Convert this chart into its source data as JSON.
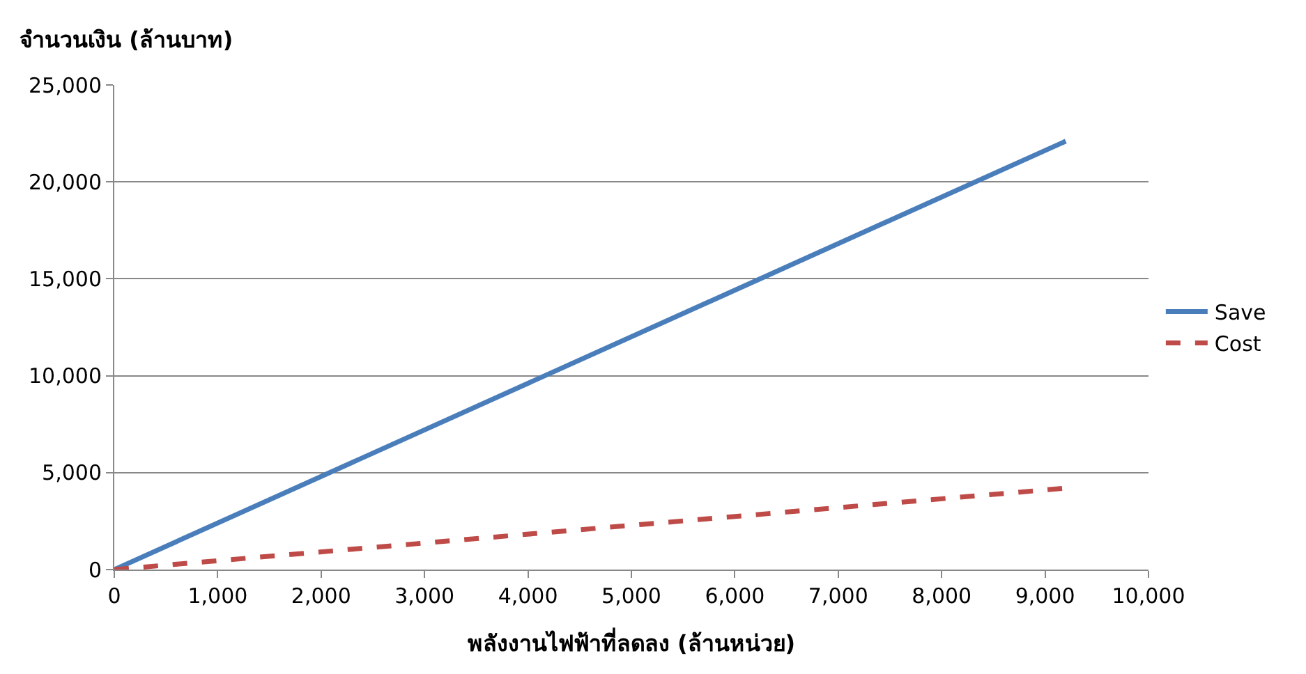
{
  "chart_data": {
    "type": "line",
    "xlabel": "พลังงานไฟฟ้าที่ลดลง (ล้านหน่วย)",
    "ylabel": "จำนวนเงิน (ล้านบาท)",
    "x": [
      0,
      9200
    ],
    "series": [
      {
        "name": "Save",
        "color": "#4a7ebb",
        "values": [
          0,
          22100
        ],
        "line_style": "solid"
      },
      {
        "name": "Cost",
        "color": "#be4b48",
        "values": [
          0,
          4200
        ],
        "line_style": "dashed"
      }
    ],
    "xlim": [
      0,
      10000
    ],
    "xticks": [
      {
        "value": 0,
        "label": "0"
      },
      {
        "value": 1000,
        "label": "1,000"
      },
      {
        "value": 2000,
        "label": "2,000"
      },
      {
        "value": 3000,
        "label": "3,000"
      },
      {
        "value": 4000,
        "label": "4,000"
      },
      {
        "value": 5000,
        "label": "5,000"
      },
      {
        "value": 6000,
        "label": "6,000"
      },
      {
        "value": 7000,
        "label": "7,000"
      },
      {
        "value": 8000,
        "label": "8,000"
      },
      {
        "value": 9000,
        "label": "9,000"
      },
      {
        "value": 10000,
        "label": "10,000"
      }
    ],
    "ylim": [
      0,
      25000
    ],
    "yticks": [
      {
        "value": 0,
        "label": "0"
      },
      {
        "value": 5000,
        "label": "5,000"
      },
      {
        "value": 10000,
        "label": "10,000"
      },
      {
        "value": 15000,
        "label": "15,000"
      },
      {
        "value": 20000,
        "label": "20,000"
      },
      {
        "value": 25000,
        "label": "25,000"
      }
    ],
    "grid": "y",
    "legend": "right",
    "marker": "none"
  }
}
